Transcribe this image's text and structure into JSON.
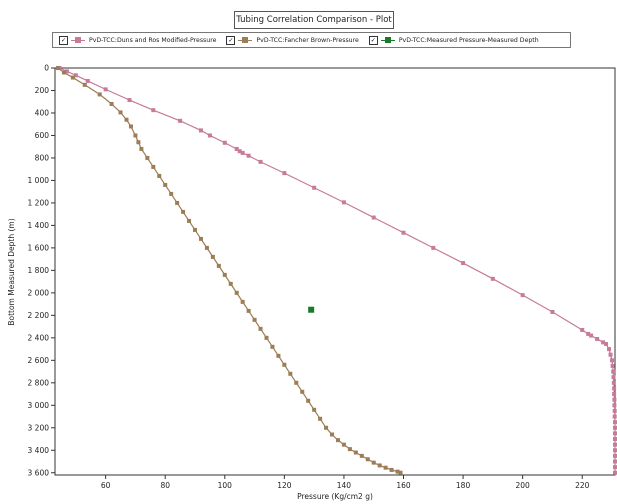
{
  "chart_data": {
    "type": "line",
    "title": "Tubing Correlation Comparison - Plot",
    "xlabel": "Pressure  (Kg/cm2 g)",
    "ylabel": "Bottom Measured Depth  (m)",
    "xlim": [
      43,
      231
    ],
    "ylim": [
      3620,
      0
    ],
    "y_inverted": true,
    "grid": false,
    "legend_position": "top",
    "x_ticks": [
      60,
      80,
      100,
      120,
      140,
      160,
      180,
      200,
      220
    ],
    "y_ticks": [
      0,
      200,
      400,
      600,
      800,
      1000,
      1200,
      1400,
      1600,
      1800,
      2000,
      2200,
      2400,
      2600,
      2800,
      3000,
      3200,
      3400,
      3600
    ],
    "y_tick_labels": [
      "0",
      "200",
      "400",
      "600",
      "800",
      "1 000",
      "1 200",
      "1 400",
      "1 600",
      "1 800",
      "2 000",
      "2 200",
      "2 400",
      "2 600",
      "2 800",
      "3 000",
      "3 200",
      "3 400",
      "3 600"
    ],
    "series": [
      {
        "name": "PvD-TCC:Duns and Ros Modified-Pressure",
        "color": "#c77a9a",
        "marker": "square",
        "points": [
          [
            44.5,
            0
          ],
          [
            47,
            30
          ],
          [
            50,
            65
          ],
          [
            54,
            115
          ],
          [
            60,
            190
          ],
          [
            68,
            285
          ],
          [
            76,
            375
          ],
          [
            85,
            470
          ],
          [
            92,
            555
          ],
          [
            95,
            600
          ],
          [
            100,
            665
          ],
          [
            104,
            720
          ],
          [
            105,
            740
          ],
          [
            106,
            755
          ],
          [
            108,
            780
          ],
          [
            112,
            835
          ],
          [
            120,
            935
          ],
          [
            130,
            1065
          ],
          [
            140,
            1195
          ],
          [
            150,
            1330
          ],
          [
            160,
            1465
          ],
          [
            170,
            1600
          ],
          [
            180,
            1735
          ],
          [
            190,
            1875
          ],
          [
            200,
            2020
          ],
          [
            210,
            2170
          ],
          [
            220,
            2330
          ],
          [
            222,
            2365
          ],
          [
            223,
            2380
          ],
          [
            225,
            2410
          ],
          [
            227,
            2440
          ],
          [
            228,
            2455
          ],
          [
            229,
            2500
          ],
          [
            229.5,
            2550
          ],
          [
            230,
            2600
          ],
          [
            230.2,
            2650
          ],
          [
            230.4,
            2700
          ],
          [
            230.5,
            2750
          ],
          [
            230.6,
            2800
          ],
          [
            230.7,
            2850
          ],
          [
            230.7,
            2900
          ],
          [
            230.8,
            2950
          ],
          [
            230.8,
            3000
          ],
          [
            230.9,
            3050
          ],
          [
            230.9,
            3100
          ],
          [
            231,
            3150
          ],
          [
            231,
            3200
          ],
          [
            231,
            3250
          ],
          [
            231,
            3300
          ],
          [
            231,
            3350
          ],
          [
            231,
            3400
          ],
          [
            231,
            3450
          ],
          [
            231,
            3500
          ],
          [
            231,
            3550
          ],
          [
            231,
            3600
          ]
        ]
      },
      {
        "name": "PvD-TCC:Fancher Brown-Pressure",
        "color": "#9b7d56",
        "marker": "square",
        "points": [
          [
            44,
            0
          ],
          [
            46,
            40
          ],
          [
            49,
            85
          ],
          [
            53,
            150
          ],
          [
            58,
            235
          ],
          [
            62,
            320
          ],
          [
            65,
            395
          ],
          [
            67,
            460
          ],
          [
            68.5,
            520
          ],
          [
            70,
            600
          ],
          [
            71,
            660
          ],
          [
            72,
            720
          ],
          [
            74,
            800
          ],
          [
            76,
            880
          ],
          [
            78,
            960
          ],
          [
            80,
            1040
          ],
          [
            82,
            1120
          ],
          [
            84,
            1200
          ],
          [
            86,
            1280
          ],
          [
            88,
            1360
          ],
          [
            90,
            1440
          ],
          [
            92,
            1520
          ],
          [
            94,
            1600
          ],
          [
            96,
            1680
          ],
          [
            98,
            1760
          ],
          [
            100,
            1840
          ],
          [
            102,
            1920
          ],
          [
            104,
            2000
          ],
          [
            106,
            2080
          ],
          [
            108,
            2160
          ],
          [
            110,
            2240
          ],
          [
            112,
            2320
          ],
          [
            114,
            2400
          ],
          [
            116,
            2480
          ],
          [
            118,
            2560
          ],
          [
            120,
            2640
          ],
          [
            122,
            2720
          ],
          [
            124,
            2800
          ],
          [
            126,
            2880
          ],
          [
            128,
            2960
          ],
          [
            130,
            3040
          ],
          [
            132,
            3120
          ],
          [
            134,
            3200
          ],
          [
            136,
            3260
          ],
          [
            138,
            3310
          ],
          [
            140,
            3350
          ],
          [
            142,
            3390
          ],
          [
            144,
            3420
          ],
          [
            146,
            3450
          ],
          [
            148,
            3480
          ],
          [
            150,
            3510
          ],
          [
            152,
            3535
          ],
          [
            154,
            3555
          ],
          [
            156,
            3575
          ],
          [
            158,
            3590
          ],
          [
            159,
            3600
          ]
        ]
      },
      {
        "name": "PvD-TCC:Measured Pressure-Measured Depth",
        "color": "#1a7a2a",
        "marker": "square",
        "points": [
          [
            129,
            2150
          ]
        ]
      }
    ]
  }
}
